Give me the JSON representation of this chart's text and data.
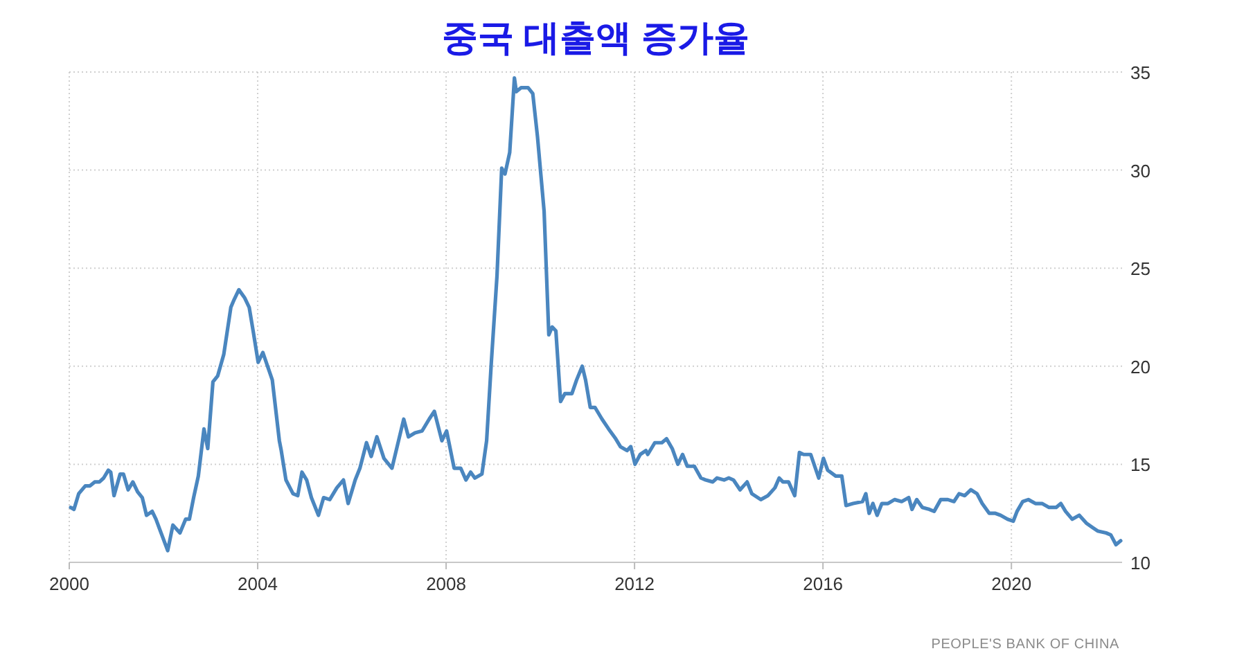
{
  "chart_data": {
    "type": "line",
    "title": "중국 대출액 증가율",
    "x": [
      2000.03,
      2000.1,
      2000.2,
      2000.34,
      2000.44,
      2000.54,
      2000.64,
      2000.73,
      2000.83,
      2000.88,
      2000.95,
      2001.08,
      2001.15,
      2001.25,
      2001.35,
      2001.45,
      2001.55,
      2001.64,
      2001.76,
      2001.84,
      2001.98,
      2002.09,
      2002.2,
      2002.35,
      2002.47,
      2002.55,
      2002.64,
      2002.74,
      2002.86,
      2002.94,
      2003.05,
      2003.15,
      2003.28,
      2003.43,
      2003.5,
      2003.6,
      2003.72,
      2003.82,
      2003.91,
      2004.01,
      2004.11,
      2004.21,
      2004.31,
      2004.46,
      2004.5,
      2004.6,
      2004.75,
      2004.85,
      2004.94,
      2005.04,
      2005.14,
      2005.29,
      2005.4,
      2005.53,
      2005.68,
      2005.82,
      2005.92,
      2006.07,
      2006.17,
      2006.31,
      2006.41,
      2006.53,
      2006.68,
      2006.85,
      2007.1,
      2007.2,
      2007.34,
      2007.49,
      2007.64,
      2007.75,
      2007.91,
      2008.01,
      2008.17,
      2008.31,
      2008.42,
      2008.52,
      2008.61,
      2008.76,
      2008.86,
      2008.96,
      2009.08,
      2009.18,
      2009.25,
      2009.35,
      2009.45,
      2009.49,
      2009.59,
      2009.74,
      2009.84,
      2009.94,
      2010.08,
      2010.18,
      2010.25,
      2010.33,
      2010.43,
      2010.52,
      2010.67,
      2010.77,
      2010.89,
      2010.96,
      2011.06,
      2011.16,
      2011.31,
      2011.45,
      2011.6,
      2011.7,
      2011.84,
      2011.92,
      2012.01,
      2012.12,
      2012.24,
      2012.28,
      2012.43,
      2012.58,
      2012.68,
      2012.8,
      2012.92,
      2013.02,
      2013.12,
      2013.27,
      2013.41,
      2013.51,
      2013.66,
      2013.75,
      2013.9,
      2014.0,
      2014.1,
      2014.24,
      2014.39,
      2014.49,
      2014.68,
      2014.83,
      2014.98,
      2015.07,
      2015.15,
      2015.27,
      2015.4,
      2015.5,
      2015.59,
      2015.74,
      2015.91,
      2016.01,
      2016.1,
      2016.27,
      2016.4,
      2016.49,
      2016.64,
      2016.84,
      2016.91,
      2016.98,
      2017.06,
      2017.15,
      2017.25,
      2017.38,
      2017.52,
      2017.67,
      2017.82,
      2017.89,
      2017.99,
      2018.11,
      2018.26,
      2018.36,
      2018.5,
      2018.65,
      2018.78,
      2018.89,
      2019.01,
      2019.14,
      2019.27,
      2019.38,
      2019.53,
      2019.66,
      2019.77,
      2019.92,
      2020.04,
      2020.12,
      2020.24,
      2020.36,
      2020.51,
      2020.65,
      2020.8,
      2020.95,
      2021.05,
      2021.15,
      2021.29,
      2021.44,
      2021.59,
      2021.71,
      2021.83,
      2022.01,
      2022.11,
      2022.22,
      2022.32
    ],
    "values": [
      12.8,
      12.7,
      13.5,
      13.9,
      13.9,
      14.1,
      14.1,
      14.3,
      14.7,
      14.6,
      13.4,
      14.5,
      14.5,
      13.7,
      14.1,
      13.6,
      13.3,
      12.4,
      12.6,
      12.2,
      11.3,
      10.6,
      11.9,
      11.5,
      12.2,
      12.2,
      13.3,
      14.4,
      16.8,
      15.8,
      19.2,
      19.5,
      20.6,
      23.0,
      23.4,
      23.9,
      23.5,
      23.0,
      21.7,
      20.2,
      20.7,
      20.0,
      19.3,
      16.2,
      15.7,
      14.2,
      13.5,
      13.4,
      14.6,
      14.2,
      13.3,
      12.4,
      13.3,
      13.2,
      13.8,
      14.2,
      13.0,
      14.2,
      14.8,
      16.1,
      15.4,
      16.4,
      15.3,
      14.8,
      17.3,
      16.4,
      16.6,
      16.7,
      17.3,
      17.7,
      16.2,
      16.7,
      14.8,
      14.8,
      14.2,
      14.6,
      14.3,
      14.5,
      16.2,
      20.2,
      24.6,
      30.1,
      29.8,
      30.9,
      34.7,
      34.0,
      34.2,
      34.2,
      33.9,
      31.7,
      27.9,
      21.6,
      22.0,
      21.8,
      18.2,
      18.6,
      18.6,
      19.3,
      20.0,
      19.3,
      17.9,
      17.9,
      17.3,
      16.8,
      16.3,
      15.9,
      15.7,
      15.9,
      15.0,
      15.5,
      15.7,
      15.5,
      16.1,
      16.1,
      16.3,
      15.8,
      15.0,
      15.5,
      14.9,
      14.9,
      14.3,
      14.2,
      14.1,
      14.3,
      14.2,
      14.3,
      14.2,
      13.7,
      14.1,
      13.5,
      13.2,
      13.4,
      13.8,
      14.3,
      14.1,
      14.1,
      13.4,
      15.6,
      15.5,
      15.5,
      14.3,
      15.3,
      14.7,
      14.4,
      14.4,
      12.9,
      13.0,
      13.1,
      13.5,
      12.5,
      13.0,
      12.4,
      13.0,
      13.0,
      13.2,
      13.1,
      13.3,
      12.7,
      13.2,
      12.8,
      12.7,
      12.6,
      13.2,
      13.2,
      13.1,
      13.5,
      13.4,
      13.7,
      13.5,
      13.0,
      12.5,
      12.5,
      12.4,
      12.2,
      12.1,
      12.6,
      13.1,
      13.2,
      13.0,
      13.0,
      12.8,
      12.8,
      13.0,
      12.6,
      12.2,
      12.4,
      12.0,
      11.8,
      11.6,
      11.5,
      11.4,
      10.9,
      11.1
    ],
    "color": "#4a86bf",
    "xlim": [
      2000,
      2022.35
    ],
    "xticks": [
      2000,
      2004,
      2008,
      2012,
      2016,
      2020
    ],
    "ylim": [
      10,
      35
    ],
    "yticks": [
      10,
      15,
      20,
      25,
      30,
      35
    ],
    "grid": true,
    "annotations": [
      "PEOPLE'S BANK OF CHINA"
    ]
  }
}
